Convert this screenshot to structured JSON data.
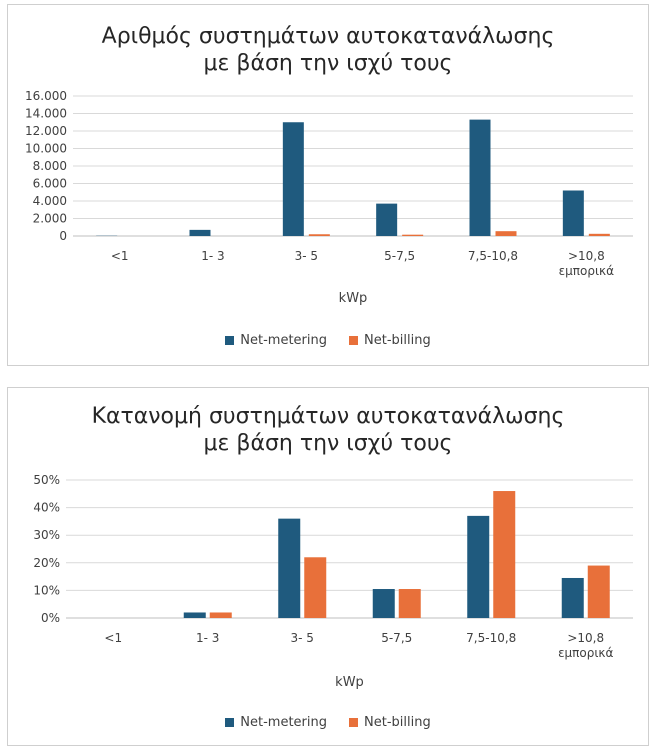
{
  "colors": {
    "net_metering": "#1f5a7e",
    "net_billing": "#e8703a",
    "grid": "#d9d9d9"
  },
  "chart_data": [
    {
      "type": "bar",
      "title_lines": [
        "Αριθμός συστημάτων αυτοκατανάλωσης",
        "με βάση την ισχύ τους"
      ],
      "categories": [
        [
          "<1"
        ],
        [
          "1- 3"
        ],
        [
          "3- 5"
        ],
        [
          "5-7,5"
        ],
        [
          "7,5-10,8"
        ],
        [
          ">10,8",
          "εμπορικά"
        ]
      ],
      "series": [
        {
          "name": "Net-metering",
          "values": [
            30,
            700,
            13000,
            3700,
            13300,
            5200
          ]
        },
        {
          "name": "Net-billing",
          "values": [
            0,
            0,
            200,
            150,
            550,
            250
          ]
        }
      ],
      "xlabel": "kWp",
      "ylim": [
        0,
        16000
      ],
      "yticks": [
        "0",
        "2.000",
        "4.000",
        "6.000",
        "8.000",
        "10.000",
        "12.000",
        "14.000",
        "16.000"
      ],
      "grid": true,
      "legend": "bottom"
    },
    {
      "type": "bar",
      "title_lines": [
        "Κατανομή συστημάτων αυτοκατανάλωσης",
        "με βάση την ισχύ τους"
      ],
      "categories": [
        [
          "<1"
        ],
        [
          "1- 3"
        ],
        [
          "3- 5"
        ],
        [
          "5-7,5"
        ],
        [
          "7,5-10,8"
        ],
        [
          ">10,8",
          "εμπορικά"
        ]
      ],
      "series": [
        {
          "name": "Net-metering",
          "values": [
            0,
            2,
            36,
            10.5,
            37,
            14.5
          ]
        },
        {
          "name": "Net-billing",
          "values": [
            0,
            2,
            22,
            10.5,
            46,
            19
          ]
        }
      ],
      "xlabel": "kWp",
      "ylim": [
        0,
        50
      ],
      "yticks": [
        "0%",
        "10%",
        "20%",
        "30%",
        "40%",
        "50%"
      ],
      "grid": true,
      "legend": "bottom"
    }
  ]
}
